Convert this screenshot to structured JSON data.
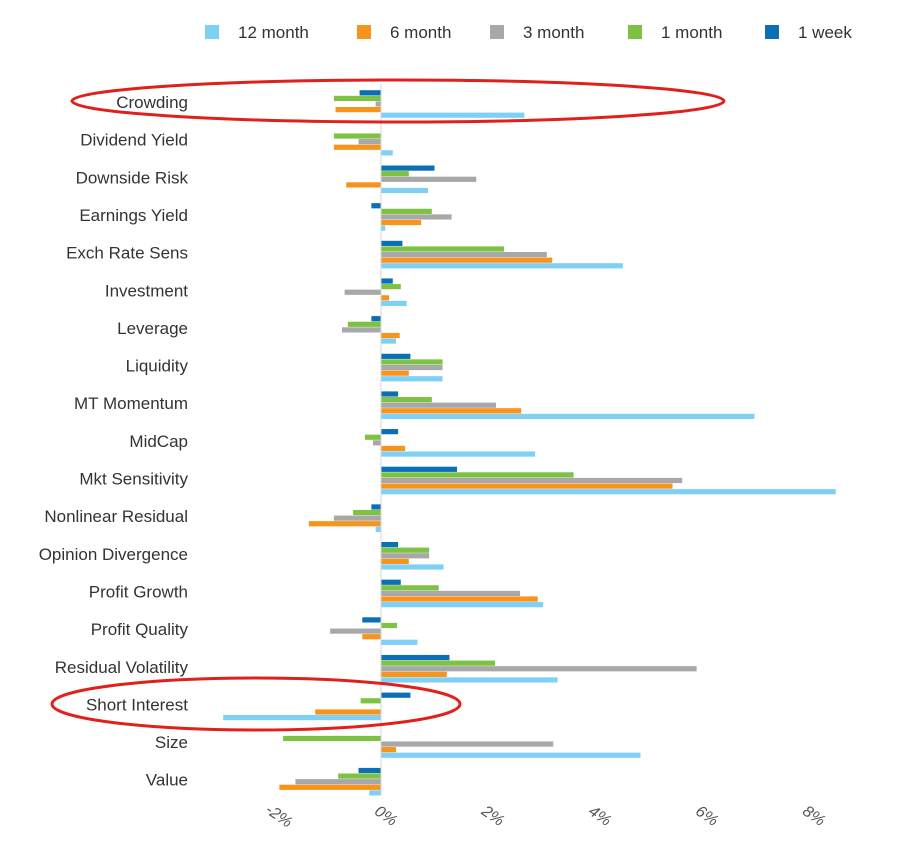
{
  "chart_data": {
    "type": "bar",
    "orientation": "horizontal",
    "categories": [
      "Crowding",
      "Dividend Yield",
      "Downside Risk",
      "Earnings Yield",
      "Exch Rate Sens",
      "Investment",
      "Leverage",
      "Liquidity",
      "MT Momentum",
      "MidCap",
      "Mkt Sensitivity",
      "Nonlinear Residual",
      "Opinion Divergence",
      "Profit Growth",
      "Profit Quality",
      "Residual Volatility",
      "Short Interest",
      "Size",
      "Value"
    ],
    "series": [
      {
        "name": "1 week",
        "color": "#0a6fb5",
        "values": [
          -0.4,
          0,
          1.0,
          -0.18,
          0.4,
          0.22,
          -0.18,
          0.55,
          0.32,
          0.32,
          1.42,
          -0.18,
          0.32,
          0.37,
          -0.35,
          1.28,
          0.55,
          0,
          -0.42
        ]
      },
      {
        "name": "1 month",
        "color": "#7dc242",
        "values": [
          -0.88,
          -0.88,
          0.52,
          0.95,
          2.3,
          0.37,
          -0.62,
          1.15,
          0.95,
          -0.3,
          3.6,
          -0.52,
          0.9,
          1.08,
          0.3,
          2.13,
          -0.38,
          -1.83,
          -0.8
        ]
      },
      {
        "name": "3 month",
        "color": "#a8a8a8",
        "values": [
          -0.1,
          -0.42,
          1.78,
          1.32,
          3.1,
          -0.68,
          -0.73,
          1.15,
          2.15,
          -0.15,
          5.63,
          -0.88,
          0.9,
          2.6,
          -0.95,
          5.9,
          0,
          3.22,
          -1.6
        ]
      },
      {
        "name": "6 month",
        "color": "#f7941d",
        "values": [
          -0.85,
          -0.88,
          -0.65,
          0.75,
          3.2,
          0.15,
          0.35,
          0.52,
          2.62,
          0.45,
          5.45,
          -1.35,
          0.52,
          2.93,
          -0.35,
          1.23,
          -1.23,
          0.28,
          -1.9
        ]
      },
      {
        "name": "12 month",
        "color": "#7fd0f5",
        "values": [
          2.68,
          0.22,
          0.88,
          0.08,
          4.52,
          0.48,
          0.28,
          1.15,
          6.98,
          2.88,
          8.5,
          -0.1,
          1.17,
          3.03,
          0.68,
          3.3,
          -2.95,
          4.85,
          -0.22
        ]
      }
    ],
    "legend_order": [
      "12 month",
      "6 month",
      "3 month",
      "1 month",
      "1 week"
    ],
    "xlim": [
      -2,
      8
    ],
    "xticks": [
      -2,
      0,
      2,
      4,
      6,
      8
    ],
    "xtick_labels": [
      "-2%",
      "0%",
      "2%",
      "4%",
      "6%",
      "8%"
    ],
    "title": "",
    "xlabel": "",
    "ylabel": "",
    "legend_position": "top-right",
    "grid": false,
    "highlighted_categories": [
      "Crowding",
      "Short Interest"
    ],
    "highlight_color": "#e0201b"
  }
}
